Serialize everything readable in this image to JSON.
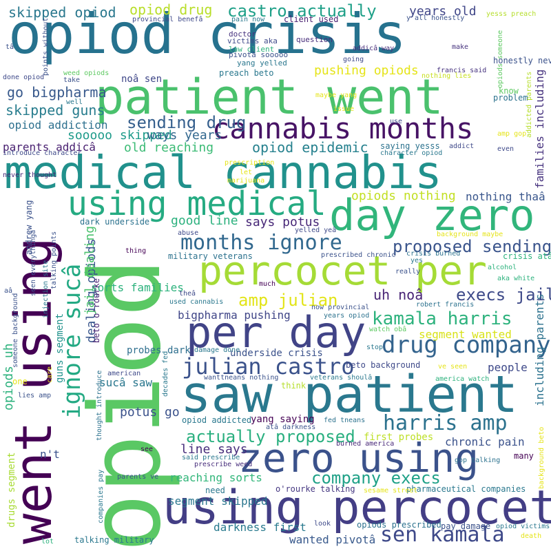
{
  "words": [
    {
      "text": "opiod crisis",
      "color": "#26728e"
    },
    {
      "text": "opiod",
      "color": "#5ac864"
    },
    {
      "text": "patient went",
      "color": "#4ac16d"
    },
    {
      "text": "went using",
      "color": "#440154"
    },
    {
      "text": "medical cannabis",
      "color": "#21918c"
    },
    {
      "text": "cannabis months",
      "color": "#471365"
    },
    {
      "text": "day zero",
      "color": "#31b57b"
    },
    {
      "text": "using medical",
      "color": "#25ab82"
    },
    {
      "text": "percocet per",
      "color": "#a5db36"
    },
    {
      "text": "per day",
      "color": "#414487"
    },
    {
      "text": "saw patient",
      "color": "#2a788e"
    },
    {
      "text": "zero using",
      "color": "#3b528b"
    },
    {
      "text": "using percocet",
      "color": "#433e85"
    },
    {
      "text": "ignore sucâ",
      "color": "#23a983"
    },
    {
      "text": "months ignore",
      "color": "#31688e"
    },
    {
      "text": "kamala harris",
      "color": "#2db27d"
    },
    {
      "text": "drug company",
      "color": "#33638d"
    },
    {
      "text": "julian castro",
      "color": "#3b528b"
    },
    {
      "text": "harris amp",
      "color": "#2c728e"
    },
    {
      "text": "sen kamala",
      "color": "#3e4989"
    },
    {
      "text": "actually proposed",
      "color": "#29af7f"
    },
    {
      "text": "castro actually",
      "color": "#1fa088"
    },
    {
      "text": "amp julian",
      "color": "#e2e418"
    },
    {
      "text": "uh noâ",
      "color": "#482475"
    },
    {
      "text": "execs jail",
      "color": "#3e4a89"
    },
    {
      "text": "proposed sending",
      "color": "#3a548c"
    },
    {
      "text": "sending drug",
      "color": "#355f8d"
    },
    {
      "text": "opiod epidemic",
      "color": "#26818e"
    },
    {
      "text": "company execs",
      "color": "#1fa187"
    },
    {
      "text": "skipped opiod",
      "color": "#2a788e"
    },
    {
      "text": "opiod drug",
      "color": "#b8de29"
    },
    {
      "text": "years old",
      "color": "#404688"
    },
    {
      "text": "pushing opiods",
      "color": "#e5e419"
    },
    {
      "text": "go bigpharma",
      "color": "#38598c"
    },
    {
      "text": "skipped guns",
      "color": "#287d8e"
    },
    {
      "text": "opiod addiction",
      "color": "#2d708e"
    },
    {
      "text": "sooooo skipped",
      "color": "#1e9b8a"
    },
    {
      "text": "ways years",
      "color": "#31678e"
    },
    {
      "text": "old reaching",
      "color": "#3bbb75"
    },
    {
      "text": "parents addicâ",
      "color": "#481f70"
    },
    {
      "text": "good line",
      "color": "#2cb17e"
    },
    {
      "text": "says potus",
      "color": "#482878"
    },
    {
      "text": "opiods nothing",
      "color": "#c2df23"
    },
    {
      "text": "nothing thaâ",
      "color": "#39568c"
    },
    {
      "text": "dealing opiods",
      "color": "#39568c"
    },
    {
      "text": "jail dealing",
      "color": "#4ac16d"
    },
    {
      "text": "opiods uh",
      "color": "#2db27d"
    },
    {
      "text": "segment wanted",
      "color": "#d8e219"
    },
    {
      "text": "bigpharma pushing",
      "color": "#404688"
    },
    {
      "text": "people",
      "color": "#3e4989"
    },
    {
      "text": "chronic pain",
      "color": "#3b528b"
    },
    {
      "text": "line says",
      "color": "#472d7b"
    },
    {
      "text": "potus go",
      "color": "#3b528b"
    },
    {
      "text": "sorts families",
      "color": "#2db27d"
    },
    {
      "text": "reaching sorts",
      "color": "#32b67a"
    },
    {
      "text": "segment skipped",
      "color": "#2a768e"
    },
    {
      "text": "darkness first",
      "color": "#297a8e"
    },
    {
      "text": "wanted pivotâ",
      "color": "#38598c"
    },
    {
      "text": "first probes",
      "color": "#bddf26"
    },
    {
      "text": "yang saying",
      "color": "#440154"
    },
    {
      "text": "sucâ saw",
      "color": "#2a778e"
    },
    {
      "text": "probes dark",
      "color": "#2e6f8e"
    },
    {
      "text": "underside crisis",
      "color": "#3b528b"
    },
    {
      "text": "guns segment",
      "color": "#20928c"
    },
    {
      "text": "drugs segment",
      "color": "#a8db34"
    },
    {
      "text": "families including",
      "color": "#46327e"
    },
    {
      "text": "including parents",
      "color": "#2c728e"
    },
    {
      "text": "n't",
      "color": "#3b528b"
    },
    {
      "text": "pharmaceutical companies",
      "color": "#2a788e"
    },
    {
      "text": "o'rourke talking",
      "color": "#453781"
    },
    {
      "text": "beto o'rourke",
      "color": "#482374"
    },
    {
      "text": "crisis atâ",
      "color": "#2db27d"
    },
    {
      "text": "andrew yang",
      "color": "#3b528b"
    },
    {
      "text": "dark underside",
      "color": "#2c728e"
    },
    {
      "text": "noâ sen",
      "color": "#3f4788"
    },
    {
      "text": "preach beto",
      "color": "#2a788e"
    },
    {
      "text": "client used",
      "color": "#481f70"
    },
    {
      "text": "doctor",
      "color": "#46327e"
    },
    {
      "text": "victims aka",
      "color": "#3e4989"
    },
    {
      "text": "law client",
      "color": "#2db27d"
    },
    {
      "text": "pivotâ sooooo",
      "color": "#3b528b"
    },
    {
      "text": "yang yelled",
      "color": "#2a778e"
    },
    {
      "text": "question",
      "color": "#472d7b"
    },
    {
      "text": "addicâ way",
      "color": "#472d7b"
    },
    {
      "text": "make",
      "color": "#46337e"
    },
    {
      "text": "going",
      "color": "#3e4989"
    },
    {
      "text": "francis said",
      "color": "#46327e"
    },
    {
      "text": "nothing lies",
      "color": "#c8e020"
    },
    {
      "text": "problem",
      "color": "#2c728e"
    },
    {
      "text": "know",
      "color": "#5ec962"
    },
    {
      "text": "honestly never",
      "color": "#3b528b"
    },
    {
      "text": "yesss preach",
      "color": "#b5de2b"
    },
    {
      "text": "y'all honestly",
      "color": "#3b528b"
    },
    {
      "text": "pain now",
      "color": "#2a788e"
    },
    {
      "text": "provincial benefâ",
      "color": "#3e4989"
    },
    {
      "text": "weed opiods",
      "color": "#5ec962"
    },
    {
      "text": "take",
      "color": "#3b528b"
    },
    {
      "text": "well",
      "color": "#2a788e"
    },
    {
      "text": "done opiod",
      "color": "#3e4989"
    },
    {
      "text": "points without",
      "color": "#3b528b"
    },
    {
      "text": "maybe yang",
      "color": "#e5e419"
    },
    {
      "text": "issue",
      "color": "#e5e419"
    },
    {
      "text": "use",
      "color": "#3e4989"
    },
    {
      "text": "opiods someone",
      "color": "#5ec962"
    },
    {
      "text": "addicted parents",
      "color": "#b5de2b"
    },
    {
      "text": "saying yesss",
      "color": "#2c728e"
    },
    {
      "text": "addict",
      "color": "#3e4989"
    },
    {
      "text": "even",
      "color": "#3e4989"
    },
    {
      "text": "character opiod",
      "color": "#2a788e"
    },
    {
      "text": "amp gop",
      "color": "#e5e419"
    },
    {
      "text": "introduce character",
      "color": "#3e4989"
    },
    {
      "text": "prescription",
      "color": "#e5e419"
    },
    {
      "text": "let",
      "color": "#e5e419"
    },
    {
      "text": "marijuana",
      "color": "#e5e419"
    },
    {
      "text": "never thought",
      "color": "#482878"
    },
    {
      "text": "talking points",
      "color": "#3b528b"
    },
    {
      "text": "seen everythingâ",
      "color": "#3b528b"
    },
    {
      "text": "injection site",
      "color": "#2a788e"
    },
    {
      "text": "abuse",
      "color": "#3e4989"
    },
    {
      "text": "yelled yeâ",
      "color": "#3e4989"
    },
    {
      "text": "thing",
      "color": "#440154"
    },
    {
      "text": "military veterans",
      "color": "#2c728e"
    },
    {
      "text": "prescribed chronic",
      "color": "#3b528b"
    },
    {
      "text": "background maybe",
      "color": "#e5e419"
    },
    {
      "text": "yes",
      "color": "#2a788e"
    },
    {
      "text": "alcohol",
      "color": "#2db27d"
    },
    {
      "text": "aka white",
      "color": "#2db27d"
    },
    {
      "text": "really",
      "color": "#3b528b"
    },
    {
      "text": "much",
      "color": "#440154"
    },
    {
      "text": "theâ",
      "color": "#3e4989"
    },
    {
      "text": "robert francis",
      "color": "#2c728e"
    },
    {
      "text": "used cannabis",
      "color": "#2a788e"
    },
    {
      "text": "now provincial",
      "color": "#3b528b"
    },
    {
      "text": "years opiod",
      "color": "#2c728e"
    },
    {
      "text": "watch obâ",
      "color": "#5ec962"
    },
    {
      "text": "someone background",
      "color": "#3b528b"
    },
    {
      "text": "damage done",
      "color": "#2a788e"
    },
    {
      "text": "stop",
      "color": "#2a788e"
    },
    {
      "text": "beto background",
      "color": "#3e4989"
    },
    {
      "text": "ve seen",
      "color": "#e5e419"
    },
    {
      "text": "decades fed",
      "color": "#2a788e"
    },
    {
      "text": "american",
      "color": "#3e4989"
    },
    {
      "text": "america watch",
      "color": "#2db27d"
    },
    {
      "text": "wanttneans nothing",
      "color": "#3b528b"
    },
    {
      "text": "veterans shoulâ",
      "color": "#2a788e"
    },
    {
      "text": "think",
      "color": "#b5de2b"
    },
    {
      "text": "one",
      "color": "#e5e419"
    },
    {
      "text": "care",
      "color": "#e5e419"
    },
    {
      "text": "thought introduce",
      "color": "#2c728e"
    },
    {
      "text": "lies amp",
      "color": "#3b528b"
    },
    {
      "text": "opiod addicted",
      "color": "#2a788e"
    },
    {
      "text": "atâ darkness",
      "color": "#3b528b"
    },
    {
      "text": "fed tneans",
      "color": "#2c728e"
    },
    {
      "text": "burned america",
      "color": "#482878"
    },
    {
      "text": "see",
      "color": "#440154"
    },
    {
      "text": "said prescribe",
      "color": "#2a788e"
    },
    {
      "text": "prescribe weed",
      "color": "#472d7b"
    },
    {
      "text": "gop talking",
      "color": "#2c728e"
    },
    {
      "text": "many",
      "color": "#440154"
    },
    {
      "text": "need",
      "color": "#2a788e"
    },
    {
      "text": "sesame street",
      "color": "#e5e419"
    },
    {
      "text": "parents ve",
      "color": "#3b528b"
    },
    {
      "text": "companies pay",
      "color": "#2a788e"
    },
    {
      "text": "look",
      "color": "#3e4989"
    },
    {
      "text": "opiods prescribed",
      "color": "#2c728e"
    },
    {
      "text": "pay damage",
      "color": "#3b528b"
    },
    {
      "text": "opiod victims",
      "color": "#2a788e"
    },
    {
      "text": "death",
      "color": "#e5e419"
    },
    {
      "text": "lot",
      "color": "#2db27d"
    },
    {
      "text": "talking military",
      "color": "#2a788e"
    },
    {
      "text": "aâ",
      "color": "#3b528b"
    },
    {
      "text": "tâ",
      "color": "#3b528b"
    },
    {
      "text": "background beto",
      "color": "#e5e419"
    },
    {
      "text": "crisis burned",
      "color": "#2c728e"
    }
  ]
}
